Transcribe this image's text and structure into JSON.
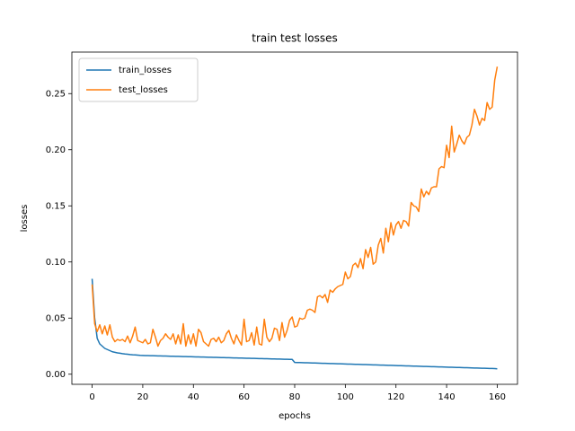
{
  "chart_data": {
    "type": "line",
    "title": "train test losses",
    "x_label": "epochs",
    "y_label": "losses",
    "x": [
      0,
      1,
      2,
      3,
      4,
      5,
      6,
      7,
      8,
      9,
      10,
      11,
      12,
      13,
      14,
      15,
      16,
      17,
      18,
      19,
      20,
      21,
      22,
      23,
      24,
      25,
      26,
      27,
      28,
      29,
      30,
      31,
      32,
      33,
      34,
      35,
      36,
      37,
      38,
      39,
      40,
      41,
      42,
      43,
      44,
      45,
      46,
      47,
      48,
      49,
      50,
      51,
      52,
      53,
      54,
      55,
      56,
      57,
      58,
      59,
      60,
      61,
      62,
      63,
      64,
      65,
      66,
      67,
      68,
      69,
      70,
      71,
      72,
      73,
      74,
      75,
      76,
      77,
      78,
      79,
      80,
      81,
      82,
      83,
      84,
      85,
      86,
      87,
      88,
      89,
      90,
      91,
      92,
      93,
      94,
      95,
      96,
      97,
      98,
      99,
      100,
      101,
      102,
      103,
      104,
      105,
      106,
      107,
      108,
      109,
      110,
      111,
      112,
      113,
      114,
      115,
      116,
      117,
      118,
      119,
      120,
      121,
      122,
      123,
      124,
      125,
      126,
      127,
      128,
      129,
      130,
      131,
      132,
      133,
      134,
      135,
      136,
      137,
      138,
      139,
      140,
      141,
      142,
      143,
      144,
      145,
      146,
      147,
      148,
      149,
      150,
      151,
      152,
      153,
      154,
      155,
      156,
      157,
      158,
      159,
      160
    ],
    "series": [
      {
        "name": "train_losses",
        "color": "#1f77b4",
        "values": [
          0.085,
          0.05,
          0.032,
          0.027,
          0.025,
          0.023,
          0.022,
          0.021,
          0.02,
          0.0195,
          0.019,
          0.0187,
          0.0183,
          0.018,
          0.0178,
          0.0175,
          0.0173,
          0.0172,
          0.017,
          0.0168,
          0.0167,
          0.0166,
          0.0166,
          0.0165,
          0.0165,
          0.0164,
          0.0163,
          0.0163,
          0.0162,
          0.0162,
          0.0161,
          0.016,
          0.016,
          0.0159,
          0.0159,
          0.0158,
          0.0157,
          0.0157,
          0.0156,
          0.0156,
          0.0155,
          0.0154,
          0.0154,
          0.0153,
          0.0153,
          0.0152,
          0.0151,
          0.0151,
          0.015,
          0.015,
          0.0149,
          0.0148,
          0.0148,
          0.0147,
          0.0147,
          0.0146,
          0.0145,
          0.0145,
          0.0144,
          0.0144,
          0.0143,
          0.0142,
          0.0142,
          0.0141,
          0.0141,
          0.014,
          0.0139,
          0.0139,
          0.0138,
          0.0138,
          0.0137,
          0.0136,
          0.0136,
          0.0135,
          0.0135,
          0.0134,
          0.0133,
          0.0133,
          0.0132,
          0.0132,
          0.0105,
          0.0104,
          0.0104,
          0.0103,
          0.0102,
          0.0102,
          0.0101,
          0.01,
          0.01,
          0.0099,
          0.0098,
          0.0097,
          0.0097,
          0.0096,
          0.0095,
          0.0095,
          0.0094,
          0.0093,
          0.0093,
          0.0092,
          0.0091,
          0.009,
          0.009,
          0.0089,
          0.0088,
          0.0088,
          0.0087,
          0.0086,
          0.0086,
          0.0085,
          0.0084,
          0.0083,
          0.0083,
          0.0082,
          0.0081,
          0.0081,
          0.008,
          0.0079,
          0.0079,
          0.0078,
          0.0077,
          0.0076,
          0.0076,
          0.0075,
          0.0074,
          0.0074,
          0.0073,
          0.0072,
          0.0072,
          0.0071,
          0.007,
          0.0069,
          0.0069,
          0.0068,
          0.0067,
          0.0067,
          0.0066,
          0.0065,
          0.0065,
          0.0064,
          0.0063,
          0.0062,
          0.0062,
          0.0061,
          0.006,
          0.006,
          0.0059,
          0.0058,
          0.0058,
          0.0057,
          0.0056,
          0.0055,
          0.0055,
          0.0054,
          0.0053,
          0.0053,
          0.0052,
          0.0051,
          0.0051,
          0.005,
          0.0048
        ]
      },
      {
        "name": "test_losses",
        "color": "#ff7f0e",
        "values": [
          0.08,
          0.045,
          0.038,
          0.044,
          0.036,
          0.043,
          0.035,
          0.044,
          0.033,
          0.029,
          0.031,
          0.03,
          0.031,
          0.029,
          0.034,
          0.028,
          0.034,
          0.042,
          0.03,
          0.029,
          0.028,
          0.031,
          0.027,
          0.028,
          0.04,
          0.033,
          0.025,
          0.03,
          0.032,
          0.036,
          0.033,
          0.031,
          0.036,
          0.027,
          0.035,
          0.027,
          0.045,
          0.025,
          0.035,
          0.027,
          0.036,
          0.025,
          0.04,
          0.037,
          0.029,
          0.027,
          0.025,
          0.031,
          0.032,
          0.029,
          0.033,
          0.028,
          0.03,
          0.036,
          0.039,
          0.032,
          0.027,
          0.035,
          0.03,
          0.026,
          0.049,
          0.029,
          0.03,
          0.037,
          0.026,
          0.042,
          0.027,
          0.026,
          0.049,
          0.033,
          0.029,
          0.032,
          0.041,
          0.04,
          0.03,
          0.046,
          0.033,
          0.039,
          0.048,
          0.051,
          0.042,
          0.043,
          0.05,
          0.049,
          0.05,
          0.057,
          0.058,
          0.057,
          0.055,
          0.069,
          0.07,
          0.068,
          0.071,
          0.064,
          0.075,
          0.073,
          0.076,
          0.078,
          0.079,
          0.08,
          0.091,
          0.085,
          0.087,
          0.097,
          0.099,
          0.095,
          0.103,
          0.094,
          0.111,
          0.104,
          0.113,
          0.098,
          0.1,
          0.115,
          0.121,
          0.108,
          0.13,
          0.118,
          0.135,
          0.124,
          0.133,
          0.136,
          0.13,
          0.137,
          0.136,
          0.132,
          0.153,
          0.15,
          0.149,
          0.145,
          0.165,
          0.158,
          0.163,
          0.16,
          0.166,
          0.167,
          0.167,
          0.183,
          0.185,
          0.184,
          0.204,
          0.193,
          0.221,
          0.198,
          0.205,
          0.213,
          0.208,
          0.205,
          0.211,
          0.213,
          0.222,
          0.236,
          0.23,
          0.222,
          0.228,
          0.226,
          0.242,
          0.236,
          0.238,
          0.262,
          0.274
        ]
      }
    ],
    "xlim": [
      -8,
      168
    ],
    "ylim": [
      -0.009,
      0.287
    ],
    "xticks": [
      0,
      20,
      40,
      60,
      80,
      100,
      120,
      140,
      160
    ],
    "yticks": [
      {
        "value": 0,
        "label": "0.00"
      },
      {
        "value": 0.05,
        "label": "0.05"
      },
      {
        "value": 0.1,
        "label": "0.10"
      },
      {
        "value": 0.15,
        "label": "0.15"
      },
      {
        "value": 0.2,
        "label": "0.20"
      },
      {
        "value": 0.25,
        "label": "0.25"
      }
    ],
    "legend": "upper left"
  }
}
